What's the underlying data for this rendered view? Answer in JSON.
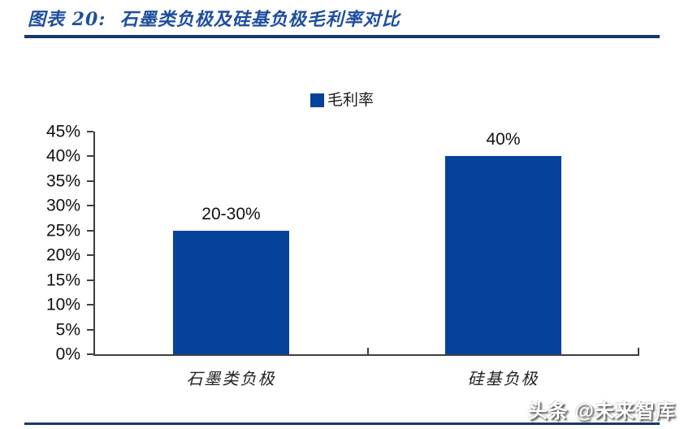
{
  "header": {
    "title": "图表 20:  石墨类负极及硅基负极毛利率对比"
  },
  "chart_data": {
    "type": "bar",
    "title": "石墨类负极及硅基负极毛利率对比",
    "categories": [
      "石墨类负极",
      "硅基负极"
    ],
    "values": [
      25,
      40
    ],
    "value_labels": [
      "20-30%",
      "40%"
    ],
    "legend": [
      "毛利率"
    ],
    "legend_position": "top",
    "grid": false,
    "ylim": [
      0,
      45
    ],
    "ytick_labels": [
      "0%",
      "5%",
      "10%",
      "15%",
      "20%",
      "25%",
      "30%",
      "35%",
      "40%",
      "45%"
    ],
    "bar_color": "#05429B",
    "title_color": "#1F4E9F",
    "rule_color": "#17386B"
  },
  "watermark": {
    "text": "头条 @未来智库"
  }
}
